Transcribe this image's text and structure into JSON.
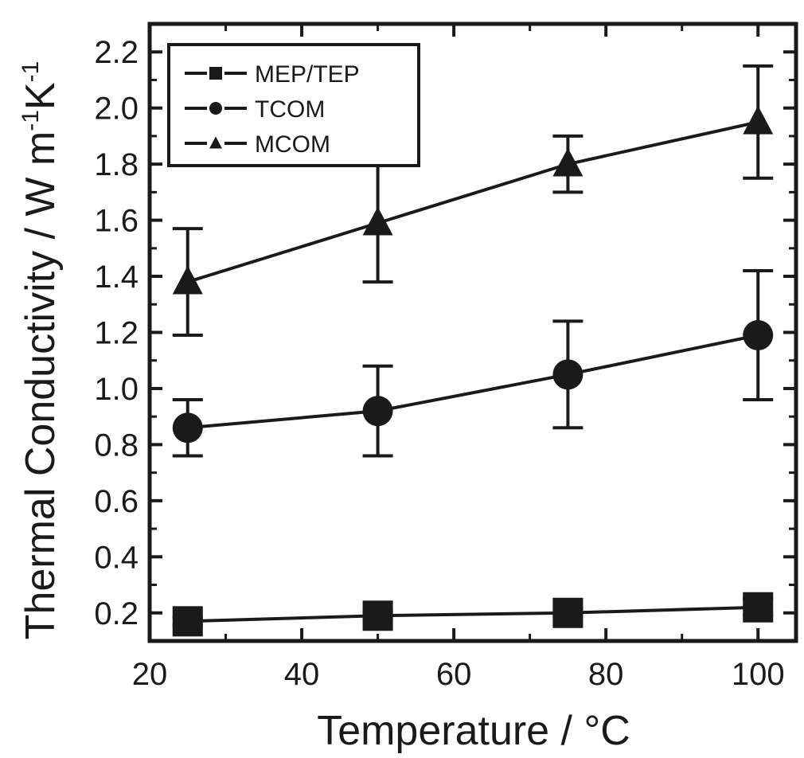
{
  "chart_data": {
    "type": "line",
    "xlabel_text": "Temperature / ",
    "xlabel_unit": "°C",
    "ylabel_text": "Thermal Conductivity / W m",
    "ylabel_sup1": "-1",
    "ylabel_mid": "K",
    "ylabel_sup2": "-1",
    "xlim": [
      20,
      105
    ],
    "ylim": [
      0.1,
      2.3
    ],
    "xticks": [
      "20",
      "40",
      "60",
      "80",
      "100"
    ],
    "xtick_values": [
      20,
      40,
      60,
      80,
      100
    ],
    "yticks": [
      "0.2",
      "0.4",
      "0.6",
      "0.8",
      "1.0",
      "1.2",
      "1.4",
      "1.6",
      "1.8",
      "2.0",
      "2.2"
    ],
    "ytick_values": [
      0.2,
      0.4,
      0.6,
      0.8,
      1.0,
      1.2,
      1.4,
      1.6,
      1.8,
      2.0,
      2.2
    ],
    "grid": false,
    "legend_position": "top-left",
    "x": [
      25,
      50,
      75,
      100
    ],
    "series": [
      {
        "name": "MEP/TEP",
        "marker": "square",
        "values": [
          0.17,
          0.19,
          0.2,
          0.22
        ],
        "error": [
          0.015,
          0.015,
          0.015,
          0.03
        ]
      },
      {
        "name": "TCOM",
        "marker": "circle",
        "values": [
          0.86,
          0.92,
          1.05,
          1.19
        ],
        "error": [
          0.1,
          0.16,
          0.19,
          0.23
        ]
      },
      {
        "name": "MCOM",
        "marker": "triangle",
        "values": [
          1.38,
          1.59,
          1.8,
          1.95
        ],
        "error": [
          0.19,
          0.21,
          0.1,
          0.2
        ]
      }
    ]
  }
}
